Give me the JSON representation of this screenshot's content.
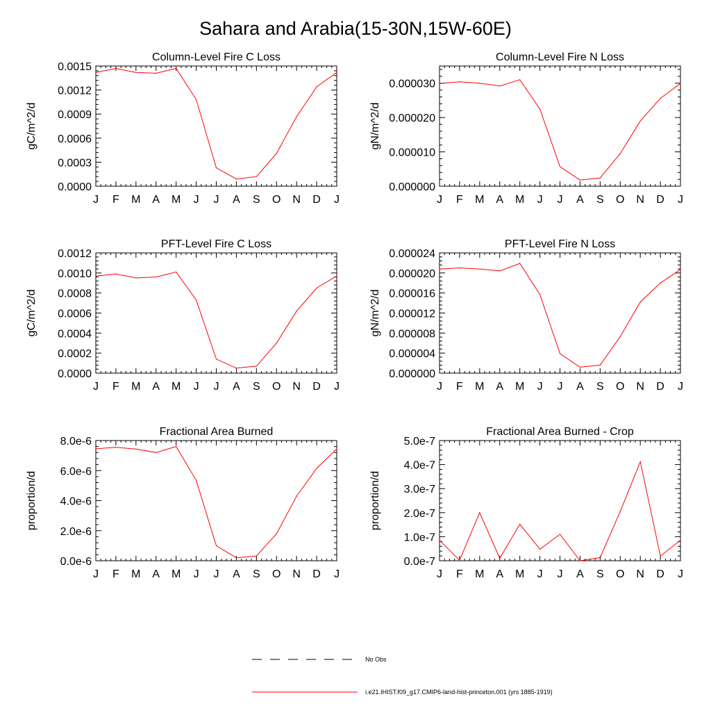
{
  "figure": {
    "title": "Sahara and Arabia(15-30N,15W-60E)"
  },
  "legend": {
    "entries": [
      {
        "label": "No Obs",
        "style": "dashed",
        "color": "#000000"
      },
      {
        "label": "i.e21.IHIST.f09_g17.CMIP6-land-hist-princeton.001 (yrs 1885-1919)",
        "style": "solid",
        "color": "#ff0000"
      }
    ]
  },
  "series_color": "#ff0000",
  "chart_data": [
    {
      "type": "line",
      "title": "Column-Level Fire C Loss",
      "ylabel": "gC/m^2/d",
      "categories": [
        "J",
        "F",
        "M",
        "A",
        "M",
        "J",
        "J",
        "A",
        "S",
        "O",
        "N",
        "D",
        "J"
      ],
      "ylim": [
        0,
        0.0015
      ],
      "yticks": [
        "0.0000",
        "0.0003",
        "0.0006",
        "0.0009",
        "0.0012",
        "0.0015"
      ],
      "series": [
        {
          "values": [
            0.00142,
            0.00147,
            0.00142,
            0.00141,
            0.00147,
            0.00108,
            0.00023,
            9e-05,
            0.00012,
            0.00041,
            0.00087,
            0.00124,
            0.00142
          ]
        }
      ]
    },
    {
      "type": "line",
      "title": "Column-Level Fire N Loss",
      "ylabel": "gN/m^2/d",
      "categories": [
        "J",
        "F",
        "M",
        "A",
        "M",
        "J",
        "J",
        "A",
        "S",
        "O",
        "N",
        "D",
        "J"
      ],
      "ylim": [
        0,
        3.5e-05
      ],
      "yticks": [
        "0.000000",
        "0.000010",
        "0.000020",
        "0.000030"
      ],
      "series": [
        {
          "values": [
            2.99e-05,
            3.04e-05,
            3e-05,
            2.92e-05,
            3.1e-05,
            2.25e-05,
            5.7e-06,
            1.8e-06,
            2.4e-06,
            9.5e-06,
            1.9e-05,
            2.56e-05,
            2.99e-05
          ]
        }
      ]
    },
    {
      "type": "line",
      "title": "PFT-Level Fire C Loss",
      "ylabel": "gC/m^2/d",
      "categories": [
        "J",
        "F",
        "M",
        "A",
        "M",
        "J",
        "J",
        "A",
        "S",
        "O",
        "N",
        "D",
        "J"
      ],
      "ylim": [
        0,
        0.0012
      ],
      "yticks": [
        "0.0000",
        "0.0002",
        "0.0004",
        "0.0006",
        "0.0008",
        "0.0010",
        "0.0012"
      ],
      "series": [
        {
          "values": [
            0.00097,
            0.00099,
            0.00095,
            0.00096,
            0.00101,
            0.00073,
            0.00014,
            5e-05,
            7e-05,
            0.0003,
            0.00062,
            0.00085,
            0.00097
          ]
        }
      ]
    },
    {
      "type": "line",
      "title": "PFT-Level Fire N Loss",
      "ylabel": "gN/m^2/d",
      "categories": [
        "J",
        "F",
        "M",
        "A",
        "M",
        "J",
        "J",
        "A",
        "S",
        "O",
        "N",
        "D",
        "J"
      ],
      "ylim": [
        0,
        2.4e-05
      ],
      "yticks": [
        "0.000000",
        "0.000004",
        "0.000008",
        "0.000012",
        "0.000016",
        "0.000020",
        "0.000024"
      ],
      "series": [
        {
          "values": [
            2.08e-05,
            2.1e-05,
            2.08e-05,
            2.04e-05,
            2.19e-05,
            1.57e-05,
            3.9e-06,
            1.2e-06,
            1.6e-06,
            7.3e-06,
            1.42e-05,
            1.8e-05,
            2.07e-05
          ]
        }
      ]
    },
    {
      "type": "line",
      "title": "Fractional Area Burned",
      "ylabel": "proportion/d",
      "categories": [
        "J",
        "F",
        "M",
        "A",
        "M",
        "J",
        "J",
        "A",
        "S",
        "O",
        "N",
        "D",
        "J"
      ],
      "ylim": [
        0,
        8e-06
      ],
      "yticks": [
        "0.0e-6",
        "2.0e-6",
        "4.0e-6",
        "6.0e-6",
        "8.0e-6"
      ],
      "series": [
        {
          "values": [
            7.45e-06,
            7.55e-06,
            7.43e-06,
            7.2e-06,
            7.6e-06,
            5.35e-06,
            1e-06,
            2e-07,
            3.2e-07,
            1.8e-06,
            4.3e-06,
            6.15e-06,
            7.45e-06
          ]
        }
      ]
    },
    {
      "type": "line",
      "title": "Fractional Area Burned - Crop",
      "ylabel": "proportion/d",
      "categories": [
        "J",
        "F",
        "M",
        "A",
        "M",
        "J",
        "J",
        "A",
        "S",
        "O",
        "N",
        "D",
        "J"
      ],
      "ylim": [
        0,
        5e-07
      ],
      "yticks": [
        "0.0e-7",
        "1.0e-7",
        "2.0e-7",
        "3.0e-7",
        "4.0e-7",
        "5.0e-7"
      ],
      "series": [
        {
          "values": [
            8.5e-08,
            2e-09,
            2e-07,
            1e-08,
            1.52e-07,
            4.8e-08,
            1.1e-07,
            0.0,
            1.3e-08,
            2.05e-07,
            4.12e-07,
            2e-08,
            8.5e-08
          ]
        }
      ]
    }
  ]
}
